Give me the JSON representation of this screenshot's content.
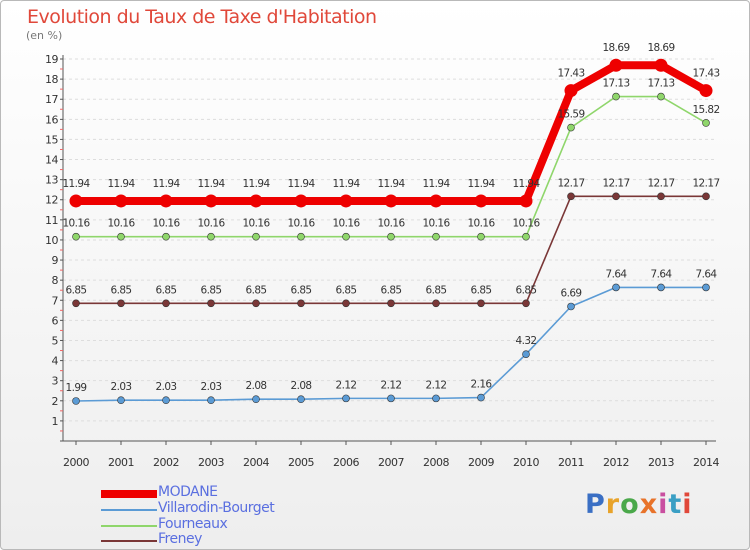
{
  "header": {
    "title": "Evolution du Taux de Taxe d'Habitation",
    "unit": "(en %)"
  },
  "logo": {
    "text": "Proxiti",
    "colors": [
      "#3a6fc4",
      "#e8a32a",
      "#4aa84a",
      "#e8732a",
      "#c94fa0",
      "#3a9fc4",
      "#e0483a"
    ]
  },
  "chart_data": {
    "type": "line",
    "title": "Evolution du Taux de Taxe d'Habitation",
    "ylabel": "(en %)",
    "xlabel": "",
    "x": [
      "2000",
      "2001",
      "2002",
      "2003",
      "2004",
      "2005",
      "2006",
      "2007",
      "2008",
      "2009",
      "2010",
      "2011",
      "2012",
      "2013",
      "2014"
    ],
    "ylim": [
      1,
      19
    ],
    "yticks": [
      1,
      2,
      3,
      4,
      5,
      6,
      7,
      8,
      9,
      10,
      11,
      12,
      13,
      14,
      15,
      16,
      17,
      18,
      19
    ],
    "grid": "horizontal",
    "legend_position": "bottom-left",
    "series": [
      {
        "name": "MODANE",
        "color": "#ee0000",
        "values": [
          11.94,
          11.94,
          11.94,
          11.94,
          11.94,
          11.94,
          11.94,
          11.94,
          11.94,
          11.94,
          11.94,
          17.43,
          18.69,
          18.69,
          17.43
        ],
        "labels": [
          "11.94",
          "11.94",
          "11.94",
          "11.94",
          "11.94",
          "11.94",
          "11.94",
          "11.94",
          "11.94",
          "11.94",
          "11.94",
          "17.43",
          "18.69",
          "18.69",
          "17.43"
        ]
      },
      {
        "name": "Villarodin-Bourget",
        "color": "#5b9bd5",
        "values": [
          1.99,
          2.03,
          2.03,
          2.03,
          2.08,
          2.08,
          2.12,
          2.12,
          2.12,
          2.16,
          4.32,
          6.69,
          7.64,
          7.64,
          7.64
        ],
        "labels": [
          "1.99",
          "2.03",
          "2.03",
          "2.03",
          "2.08",
          "2.08",
          "2.12",
          "2.12",
          "2.12",
          "2.16",
          "4.32",
          "6.69",
          "7.64",
          "7.64",
          "7.64"
        ]
      },
      {
        "name": "Fourneaux",
        "color": "#8fd66b",
        "values": [
          10.16,
          10.16,
          10.16,
          10.16,
          10.16,
          10.16,
          10.16,
          10.16,
          10.16,
          10.16,
          10.16,
          15.59,
          17.13,
          17.13,
          15.82
        ],
        "labels": [
          "10.16",
          "10.16",
          "10.16",
          "10.16",
          "10.16",
          "10.16",
          "10.16",
          "10.16",
          "10.16",
          "10.16",
          "10.16",
          "15.59",
          "17.13",
          "17.13",
          "15.82"
        ]
      },
      {
        "name": "Freney",
        "color": "#7a3737",
        "values": [
          6.85,
          6.85,
          6.85,
          6.85,
          6.85,
          6.85,
          6.85,
          6.85,
          6.85,
          6.85,
          6.85,
          12.17,
          12.17,
          12.17,
          12.17
        ],
        "labels": [
          "6.85",
          "6.85",
          "6.85",
          "6.85",
          "6.85",
          "6.85",
          "6.85",
          "6.85",
          "6.85",
          "6.85",
          "6.85",
          "12.17",
          "12.17",
          "12.17",
          "12.17"
        ]
      }
    ]
  }
}
